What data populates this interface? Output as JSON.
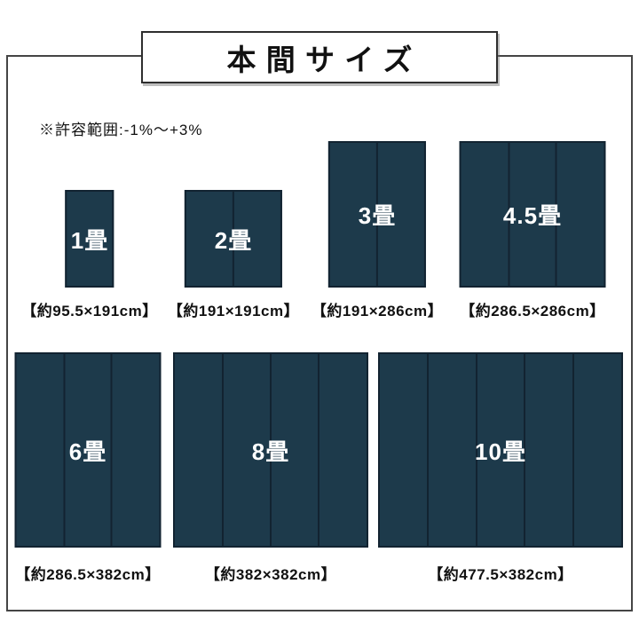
{
  "title": {
    "text": "本間サイズ"
  },
  "note": {
    "text": "※許容範囲:-1%〜+3%"
  },
  "colors": {
    "background": "#ffffff",
    "mat_fill": "#1d3a4b",
    "mat_line": "#122331",
    "frame_border": "#454545",
    "title_border": "#2e2e2e",
    "text": "#111111",
    "mat_label": "#ffffff"
  },
  "mats": {
    "rows": [
      {
        "items": [
          {
            "label": "1畳",
            "size_text": "【約95.5×191cm】",
            "width_cm": 95.5,
            "height_cm": 191,
            "panels": 1
          },
          {
            "label": "2畳",
            "size_text": "【約191×191cm】",
            "width_cm": 191,
            "height_cm": 191,
            "panels": 2
          },
          {
            "label": "3畳",
            "size_text": "【約191×286cm】",
            "width_cm": 191,
            "height_cm": 286,
            "panels": 2
          },
          {
            "label": "4.5畳",
            "size_text": "【約286.5×286cm】",
            "width_cm": 286.5,
            "height_cm": 286,
            "panels": 3
          }
        ]
      },
      {
        "items": [
          {
            "label": "6畳",
            "size_text": "【約286.5×382cm】",
            "width_cm": 286.5,
            "height_cm": 382,
            "panels": 3
          },
          {
            "label": "8畳",
            "size_text": "【約382×382cm】",
            "width_cm": 382,
            "height_cm": 382,
            "panels": 4
          },
          {
            "label": "10畳",
            "size_text": "【約477.5×382cm】",
            "width_cm": 477.5,
            "height_cm": 382,
            "panels": 5
          }
        ]
      }
    ]
  }
}
